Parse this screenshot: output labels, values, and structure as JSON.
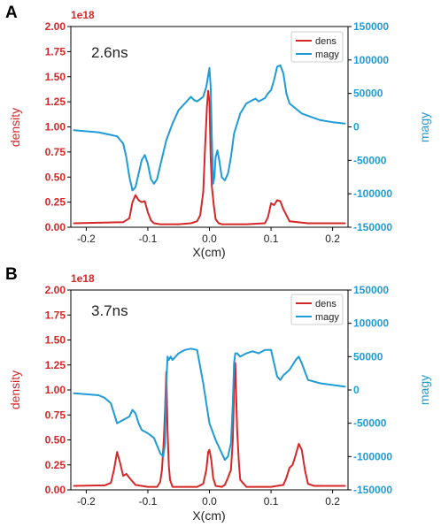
{
  "colors": {
    "density": "#d62728",
    "magy": "#1f9bd6"
  },
  "chart_data": [
    {
      "type": "line",
      "panel_label": "A",
      "annotation": "2.6ns",
      "xlabel": "X(cm)",
      "ylabel": "density",
      "y2label": "magy",
      "y_multiplier": "1e18",
      "xlim": [
        -0.225,
        0.225
      ],
      "ylim": [
        0,
        2.0
      ],
      "y2lim": [
        -150000,
        150000
      ],
      "x_ticks": [
        -0.2,
        -0.1,
        0.0,
        0.1,
        0.2
      ],
      "x_tick_labels": [
        "-0.2",
        "-0.1",
        "0.0",
        "0.1",
        "0.2"
      ],
      "y_ticks": [
        0,
        0.25,
        0.5,
        0.75,
        1.0,
        1.25,
        1.5,
        1.75,
        2.0
      ],
      "y_tick_labels": [
        "0.00",
        "0.25",
        "0.50",
        "0.75",
        "1.00",
        "1.25",
        "1.50",
        "1.75",
        "2.00"
      ],
      "y2_ticks": [
        -150000,
        -100000,
        -50000,
        0,
        50000,
        100000,
        150000
      ],
      "y2_tick_labels": [
        "-150000",
        "-100000",
        "-50000",
        "0",
        "50000",
        "100000",
        "150000"
      ],
      "grid": false,
      "legend_position": "top-right",
      "series": [
        {
          "name": "dens",
          "axis": "left",
          "x": [
            -0.22,
            -0.18,
            -0.14,
            -0.13,
            -0.125,
            -0.12,
            -0.115,
            -0.11,
            -0.105,
            -0.1,
            -0.095,
            -0.09,
            -0.08,
            -0.05,
            -0.03,
            -0.02,
            -0.015,
            -0.01,
            -0.007,
            -0.004,
            -0.002,
            0.0,
            0.002,
            0.004,
            0.007,
            0.01,
            0.015,
            0.02,
            0.03,
            0.06,
            0.09,
            0.095,
            0.1,
            0.105,
            0.11,
            0.115,
            0.12,
            0.13,
            0.16,
            0.22
          ],
          "y": [
            0.04,
            0.045,
            0.05,
            0.09,
            0.25,
            0.32,
            0.27,
            0.25,
            0.26,
            0.15,
            0.07,
            0.04,
            0.03,
            0.03,
            0.04,
            0.06,
            0.12,
            0.35,
            0.8,
            1.2,
            1.36,
            1.25,
            0.7,
            0.4,
            0.22,
            0.08,
            0.04,
            0.03,
            0.03,
            0.03,
            0.04,
            0.1,
            0.24,
            0.22,
            0.27,
            0.26,
            0.18,
            0.06,
            0.04,
            0.04
          ]
        },
        {
          "name": "magy",
          "axis": "right",
          "x": [
            -0.22,
            -0.18,
            -0.15,
            -0.14,
            -0.135,
            -0.13,
            -0.125,
            -0.12,
            -0.115,
            -0.11,
            -0.105,
            -0.1,
            -0.095,
            -0.09,
            -0.085,
            -0.08,
            -0.07,
            -0.06,
            -0.05,
            -0.04,
            -0.03,
            -0.025,
            -0.02,
            -0.01,
            -0.005,
            0.0,
            0.002,
            0.004,
            0.006,
            0.008,
            0.01,
            0.013,
            0.016,
            0.02,
            0.025,
            0.03,
            0.035,
            0.04,
            0.05,
            0.06,
            0.07,
            0.075,
            0.08,
            0.09,
            0.095,
            0.1,
            0.105,
            0.11,
            0.115,
            0.12,
            0.125,
            0.13,
            0.15,
            0.18,
            0.2,
            0.22
          ],
          "y": [
            -5000,
            -8000,
            -14000,
            -25000,
            -45000,
            -75000,
            -95000,
            -90000,
            -70000,
            -50000,
            -42000,
            -55000,
            -78000,
            -85000,
            -78000,
            -58000,
            -20000,
            5000,
            25000,
            35000,
            45000,
            40000,
            38000,
            45000,
            60000,
            88000,
            60000,
            -20000,
            -85000,
            -75000,
            -45000,
            -35000,
            -50000,
            -75000,
            -80000,
            -70000,
            -45000,
            -10000,
            20000,
            35000,
            40000,
            42000,
            38000,
            43000,
            50000,
            55000,
            70000,
            90000,
            92000,
            80000,
            50000,
            35000,
            20000,
            10000,
            7000,
            5000
          ]
        }
      ]
    },
    {
      "type": "line",
      "panel_label": "B",
      "annotation": "3.7ns",
      "xlabel": "X(cm)",
      "ylabel": "density",
      "y2label": "magy",
      "y_multiplier": "1e18",
      "xlim": [
        -0.225,
        0.225
      ],
      "ylim": [
        0,
        2.0
      ],
      "y2lim": [
        -150000,
        150000
      ],
      "x_ticks": [
        -0.2,
        -0.1,
        0.0,
        0.1,
        0.2
      ],
      "x_tick_labels": [
        "-0.2",
        "-0.1",
        "0.0",
        "0.1",
        "0.2"
      ],
      "y_ticks": [
        0,
        0.25,
        0.5,
        0.75,
        1.0,
        1.25,
        1.5,
        1.75,
        2.0
      ],
      "y_tick_labels": [
        "0.00",
        "0.25",
        "0.50",
        "0.75",
        "1.00",
        "1.25",
        "1.50",
        "1.75",
        "2.00"
      ],
      "y2_ticks": [
        -150000,
        -100000,
        -50000,
        0,
        50000,
        100000,
        150000
      ],
      "y2_tick_labels": [
        "-150000",
        "-100000",
        "-50000",
        "0",
        "50000",
        "100000",
        "150000"
      ],
      "grid": false,
      "legend_position": "top-right",
      "series": [
        {
          "name": "dens",
          "axis": "left",
          "x": [
            -0.22,
            -0.17,
            -0.16,
            -0.155,
            -0.15,
            -0.145,
            -0.14,
            -0.135,
            -0.13,
            -0.12,
            -0.1,
            -0.085,
            -0.08,
            -0.077,
            -0.074,
            -0.072,
            -0.07,
            -0.068,
            -0.066,
            -0.064,
            -0.06,
            -0.05,
            -0.02,
            -0.01,
            -0.005,
            -0.002,
            0.0,
            0.003,
            0.006,
            0.01,
            0.02,
            0.025,
            0.03,
            0.035,
            0.038,
            0.04,
            0.042,
            0.045,
            0.048,
            0.05,
            0.06,
            0.1,
            0.12,
            0.125,
            0.13,
            0.135,
            0.14,
            0.145,
            0.15,
            0.155,
            0.16,
            0.17,
            0.22
          ],
          "y": [
            0.04,
            0.045,
            0.07,
            0.2,
            0.38,
            0.27,
            0.14,
            0.16,
            0.12,
            0.05,
            0.03,
            0.03,
            0.08,
            0.2,
            0.5,
            0.8,
            1.18,
            0.6,
            0.25,
            0.1,
            0.03,
            0.03,
            0.03,
            0.06,
            0.2,
            0.38,
            0.4,
            0.3,
            0.12,
            0.04,
            0.03,
            0.05,
            0.12,
            0.2,
            0.5,
            1.0,
            1.27,
            0.6,
            0.25,
            0.1,
            0.03,
            0.03,
            0.05,
            0.12,
            0.22,
            0.25,
            0.35,
            0.46,
            0.4,
            0.2,
            0.06,
            0.04,
            0.04
          ]
        },
        {
          "name": "magy",
          "axis": "right",
          "x": [
            -0.22,
            -0.18,
            -0.17,
            -0.16,
            -0.155,
            -0.15,
            -0.14,
            -0.13,
            -0.125,
            -0.12,
            -0.115,
            -0.11,
            -0.1,
            -0.09,
            -0.08,
            -0.075,
            -0.072,
            -0.07,
            -0.068,
            -0.066,
            -0.063,
            -0.06,
            -0.05,
            -0.04,
            -0.03,
            -0.02,
            -0.01,
            -0.005,
            0.0,
            0.01,
            0.02,
            0.025,
            0.03,
            0.035,
            0.038,
            0.04,
            0.042,
            0.045,
            0.05,
            0.06,
            0.07,
            0.08,
            0.09,
            0.1,
            0.105,
            0.11,
            0.115,
            0.12,
            0.13,
            0.14,
            0.145,
            0.15,
            0.16,
            0.18,
            0.22
          ],
          "y": [
            -5000,
            -8000,
            -12000,
            -20000,
            -35000,
            -50000,
            -45000,
            -40000,
            -30000,
            -35000,
            -50000,
            -60000,
            -65000,
            -72000,
            -95000,
            -100000,
            -80000,
            10000,
            50000,
            45000,
            50000,
            45000,
            55000,
            60000,
            62000,
            60000,
            10000,
            -20000,
            -50000,
            -75000,
            -95000,
            -105000,
            -100000,
            -80000,
            -20000,
            40000,
            55000,
            55000,
            50000,
            55000,
            58000,
            55000,
            60000,
            60000,
            40000,
            20000,
            15000,
            22000,
            30000,
            45000,
            50000,
            40000,
            15000,
            10000,
            5000
          ]
        }
      ]
    }
  ]
}
